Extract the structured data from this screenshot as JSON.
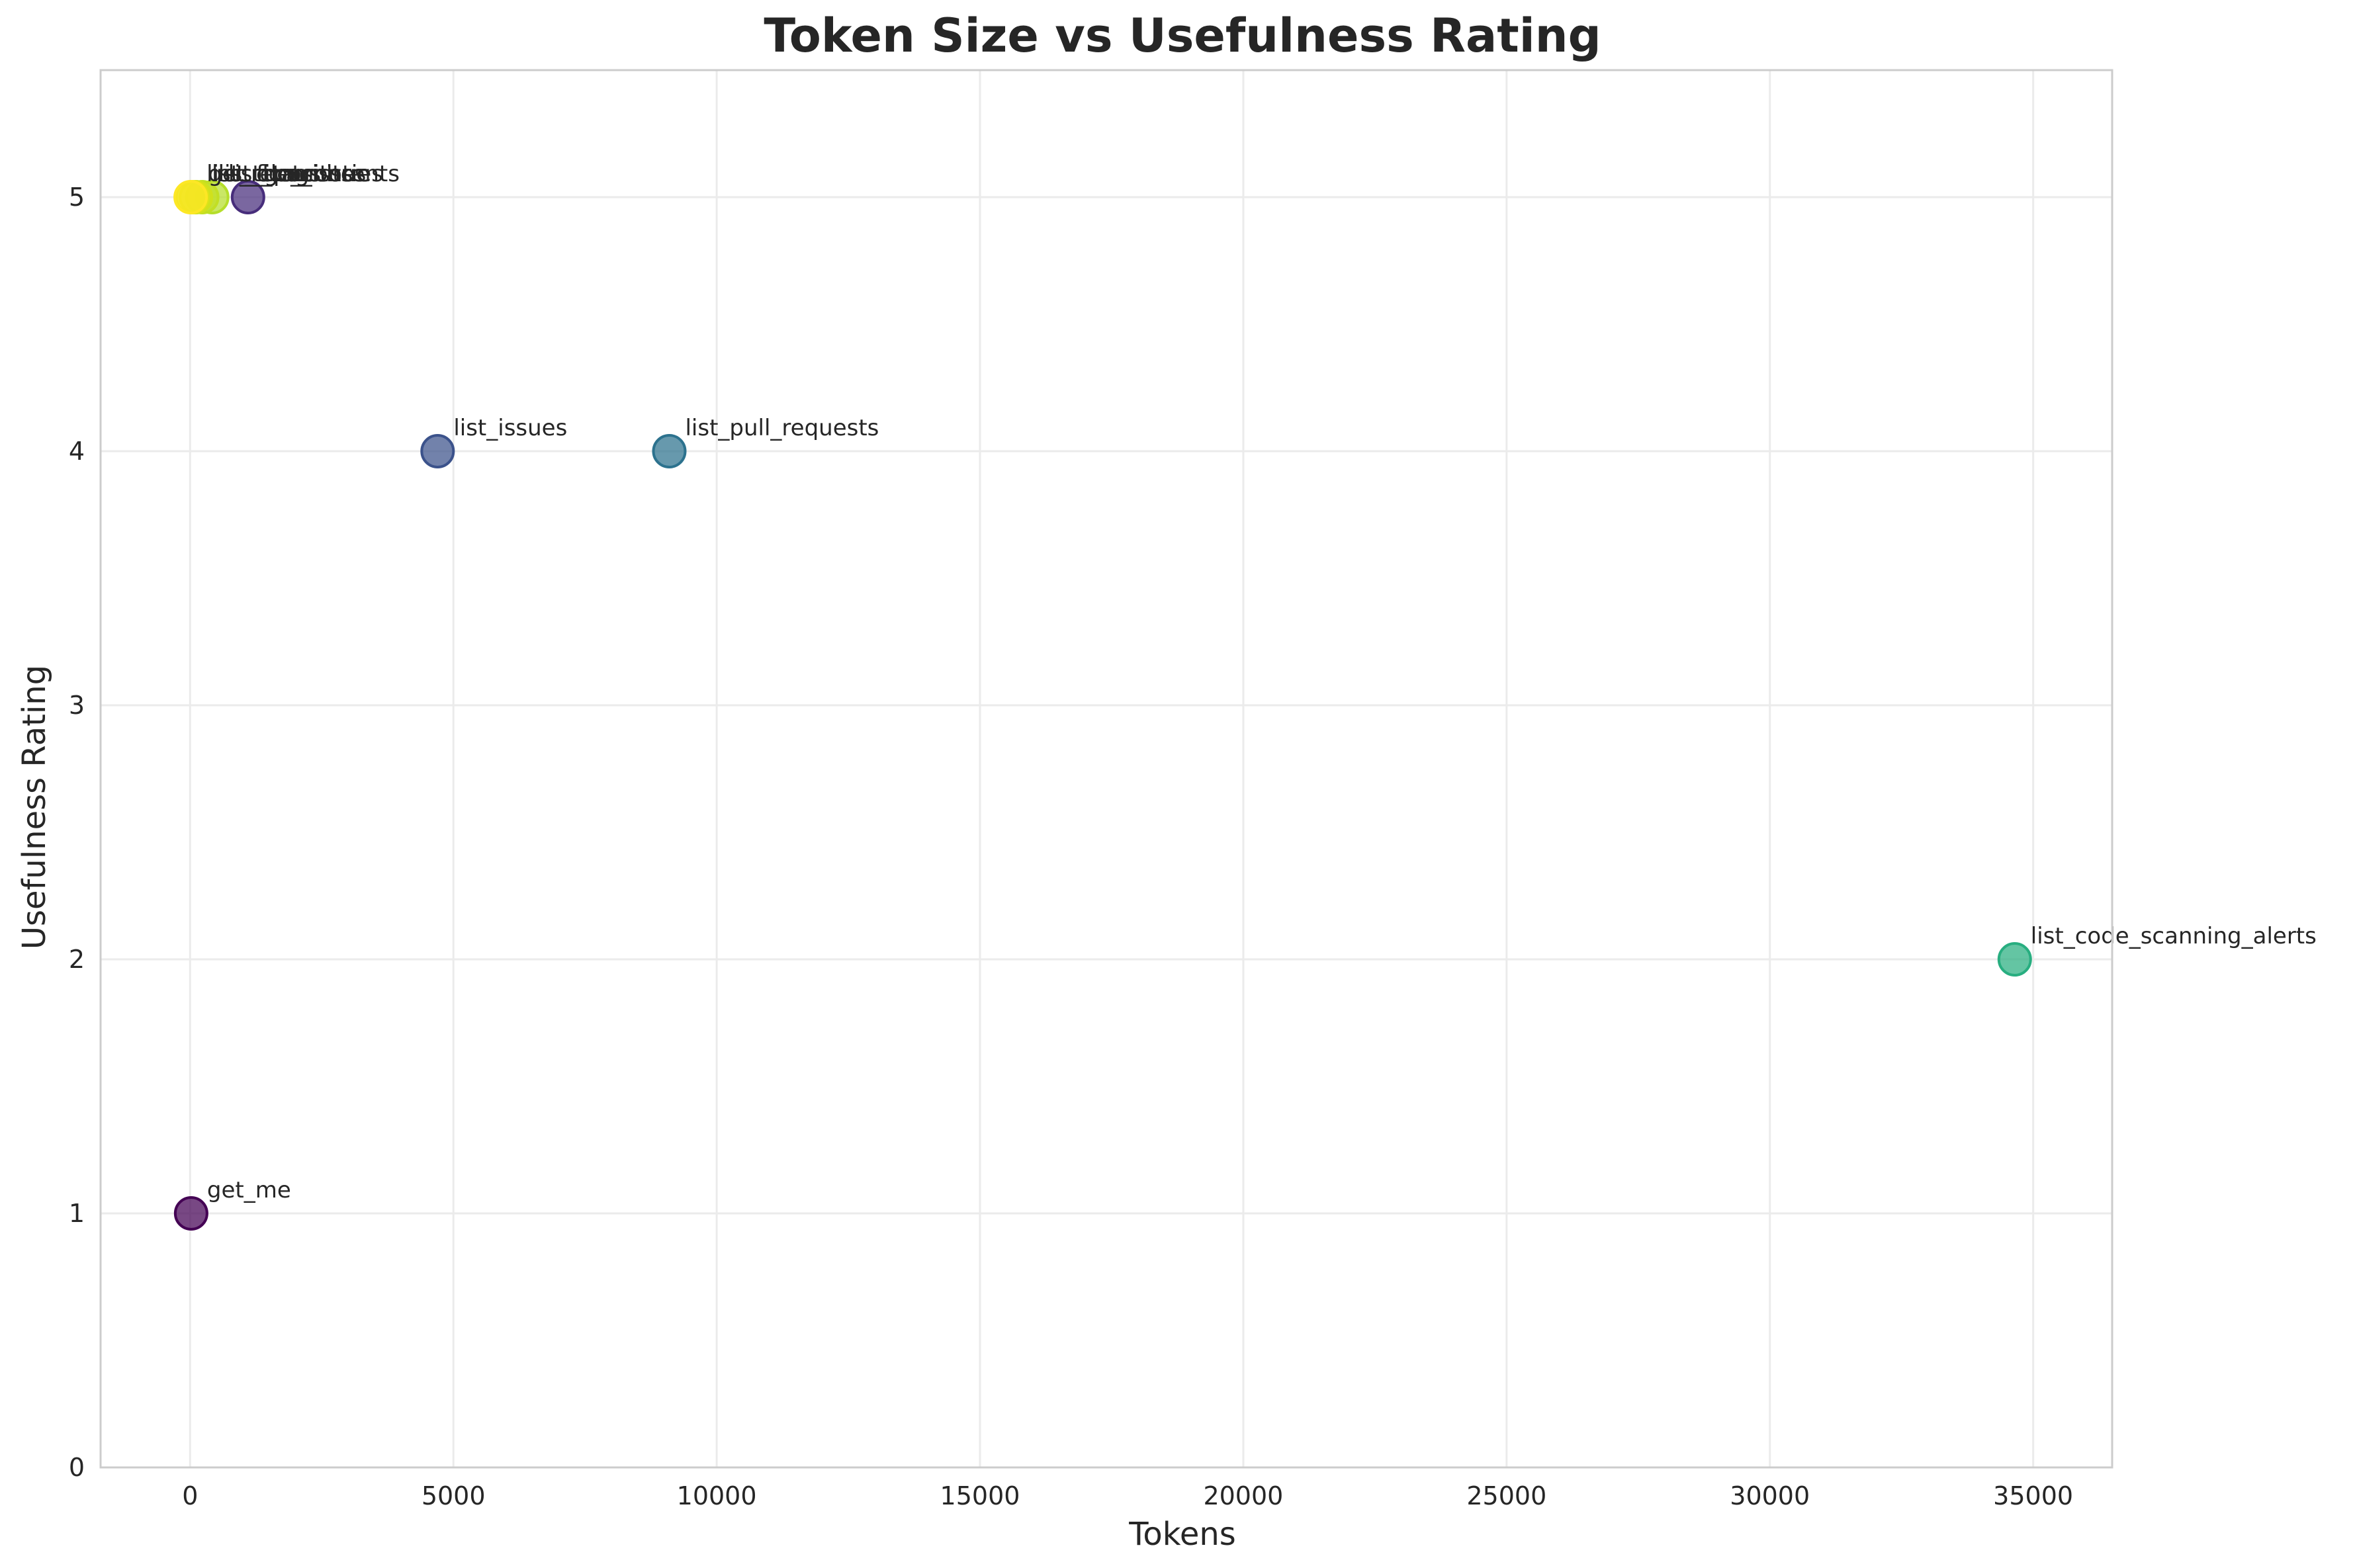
{
  "chart_data": {
    "type": "scatter",
    "title": "Token Size vs Usefulness Rating",
    "xlabel": "Tokens",
    "ylabel": "Usefulness Rating",
    "xlim": [
      -1700,
      36500
    ],
    "ylim": [
      0,
      5.5
    ],
    "xticks": [
      0,
      5000,
      10000,
      15000,
      20000,
      25000,
      30000,
      35000
    ],
    "yticks": [
      0,
      1,
      2,
      3,
      4,
      5
    ],
    "grid": true,
    "colormap": "viridis",
    "points": [
      {
        "label": "get_me",
        "x": 20,
        "y": 1,
        "color": "#440154"
      },
      {
        "label": "",
        "x": 1100,
        "y": 5,
        "color": "#472d7b"
      },
      {
        "label": "list_issues",
        "x": 4700,
        "y": 4,
        "color": "#3b528b"
      },
      {
        "label": "list_pull_requests",
        "x": 9100,
        "y": 4,
        "color": "#2c728e"
      },
      {
        "label": "list_code_scanning_alerts",
        "x": 34650,
        "y": 2,
        "color": "#28ae80"
      },
      {
        "label": "",
        "x": 420,
        "y": 5,
        "color": "#b5de2b"
      },
      {
        "label": "",
        "x": 230,
        "y": 5,
        "color": "#c2df23"
      },
      {
        "label": "",
        "x": 110,
        "y": 5,
        "color": "#d0e11c"
      },
      {
        "label": "",
        "x": 40,
        "y": 5,
        "color": "#dde318"
      },
      {
        "label": "",
        "x": 10,
        "y": 5,
        "color": "#fde725"
      }
    ],
    "overlapping_labels": [
      "list_repositories",
      "get_file_contents",
      "list_commits",
      "list_branches",
      "list_tags",
      "get_issue"
    ]
  }
}
